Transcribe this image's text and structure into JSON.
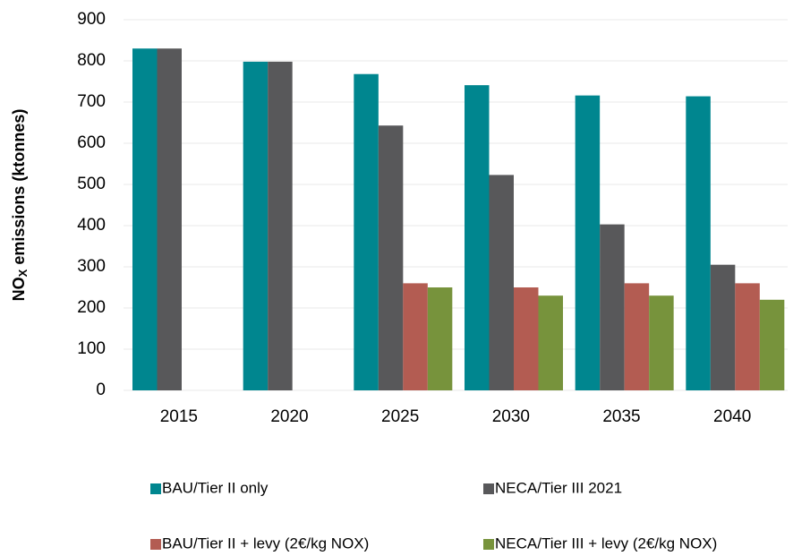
{
  "chart_data": {
    "type": "bar",
    "y_label": {
      "main": "NO",
      "subscript": "X",
      "rest": " emissions (ktonnes)"
    },
    "categories": [
      "2015",
      "2020",
      "2025",
      "2030",
      "2035",
      "2040"
    ],
    "series": [
      {
        "name": "BAU/Tier II only",
        "color": "#00868f",
        "values": [
          830,
          798,
          768,
          741,
          716,
          714
        ]
      },
      {
        "name": "NECA/Tier III 2021",
        "color": "#58585a",
        "values": [
          830,
          798,
          643,
          523,
          403,
          305
        ]
      },
      {
        "name": "BAU/Tier II + levy (2€/kg NOX)",
        "color": "#b35c52",
        "values": [
          null,
          null,
          260,
          250,
          260,
          260
        ]
      },
      {
        "name": "NECA/Tier III + levy (2€/kg NOX)",
        "color": "#77933c",
        "values": [
          null,
          null,
          250,
          230,
          230,
          220
        ]
      }
    ],
    "ylim": [
      0,
      900
    ],
    "yticks": [
      0,
      100,
      200,
      300,
      400,
      500,
      600,
      700,
      800,
      900
    ],
    "grid": true
  }
}
